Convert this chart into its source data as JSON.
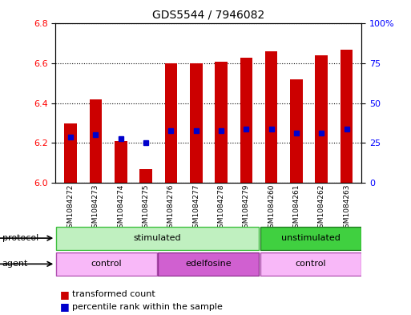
{
  "title": "GDS5544 / 7946082",
  "samples": [
    "GSM1084272",
    "GSM1084273",
    "GSM1084274",
    "GSM1084275",
    "GSM1084276",
    "GSM1084277",
    "GSM1084278",
    "GSM1084279",
    "GSM1084260",
    "GSM1084261",
    "GSM1084262",
    "GSM1084263"
  ],
  "red_values": [
    6.3,
    6.42,
    6.21,
    6.07,
    6.6,
    6.6,
    6.61,
    6.63,
    6.66,
    6.52,
    6.64,
    6.67
  ],
  "blue_values": [
    6.23,
    6.24,
    6.22,
    6.2,
    6.26,
    6.26,
    6.26,
    6.27,
    6.27,
    6.25,
    6.25,
    6.27
  ],
  "ylim_left": [
    6.0,
    6.8
  ],
  "ylim_right": [
    0,
    100
  ],
  "yticks_left": [
    6.0,
    6.2,
    6.4,
    6.6,
    6.8
  ],
  "yticks_right": [
    0,
    25,
    50,
    75,
    100
  ],
  "bar_color": "#cc0000",
  "dot_color": "#0000cc",
  "bar_width": 0.5,
  "bg_color": "#d8d8d8",
  "plot_bg": "#ffffff",
  "legend_items": [
    "transformed count",
    "percentile rank within the sample"
  ],
  "legend_colors": [
    "#cc0000",
    "#0000cc"
  ],
  "stimulated_color_light": "#c0f0c0",
  "stimulated_color_dark": "#40c040",
  "unstimulated_color_light": "#40d040",
  "unstimulated_color_dark": "#208020",
  "control_color": "#f8b8f8",
  "edelfosine_color": "#d060d0"
}
